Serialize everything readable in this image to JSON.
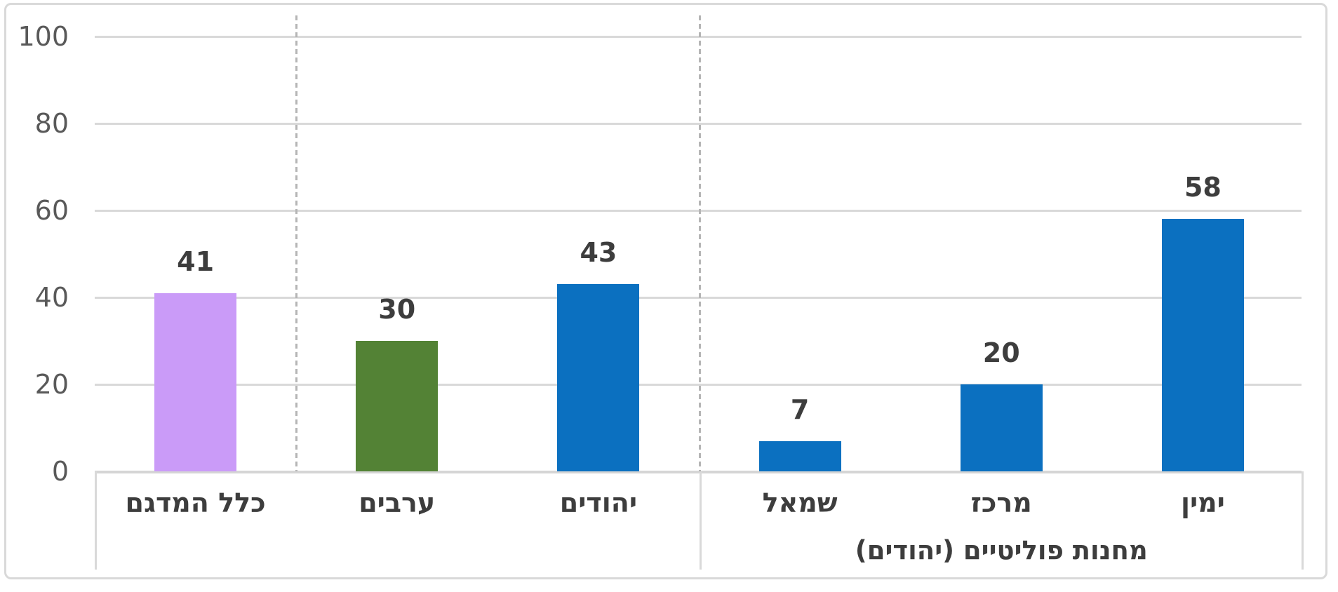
{
  "chart_data": {
    "type": "bar",
    "title": "",
    "rtl": true,
    "categories": [
      "כלל המדגם",
      "ערבים",
      "יהודים",
      "שמאל",
      "מרכז",
      "ימין"
    ],
    "values": [
      41,
      30,
      43,
      7,
      20,
      58
    ],
    "data_labels": [
      "41",
      "30",
      "43",
      "7",
      "20",
      "58"
    ],
    "bar_colors": [
      "#CA9BF8",
      "#538235",
      "#0B70C0",
      "#0B70C0",
      "#0B70C0",
      "#0B70C0"
    ],
    "y_ticks": [
      "0",
      "20",
      "40",
      "60",
      "80",
      "100"
    ],
    "y_tick_values": [
      0,
      20,
      40,
      60,
      80,
      100
    ],
    "ylim": [
      0,
      100
    ],
    "grid": true,
    "legend": "none",
    "groups": [
      {
        "label": "",
        "start": 0,
        "end": 2
      },
      {
        "label": "מחנות פוליטיים (יהודים)",
        "start": 3,
        "end": 5
      }
    ],
    "separators_after_index": [
      0,
      2
    ],
    "colors": {
      "grid": "#D9D9D9",
      "axis": "#D5D5D5",
      "dashed_separator": "#B5B5B5",
      "frame_border": "#D9D9D9",
      "tick_label": "#595959",
      "data_label": "#3D3D3D",
      "category_label": "#3D3D3D",
      "blue": "#0B70C0",
      "green": "#538235",
      "purple": "#CA9BF8"
    }
  }
}
